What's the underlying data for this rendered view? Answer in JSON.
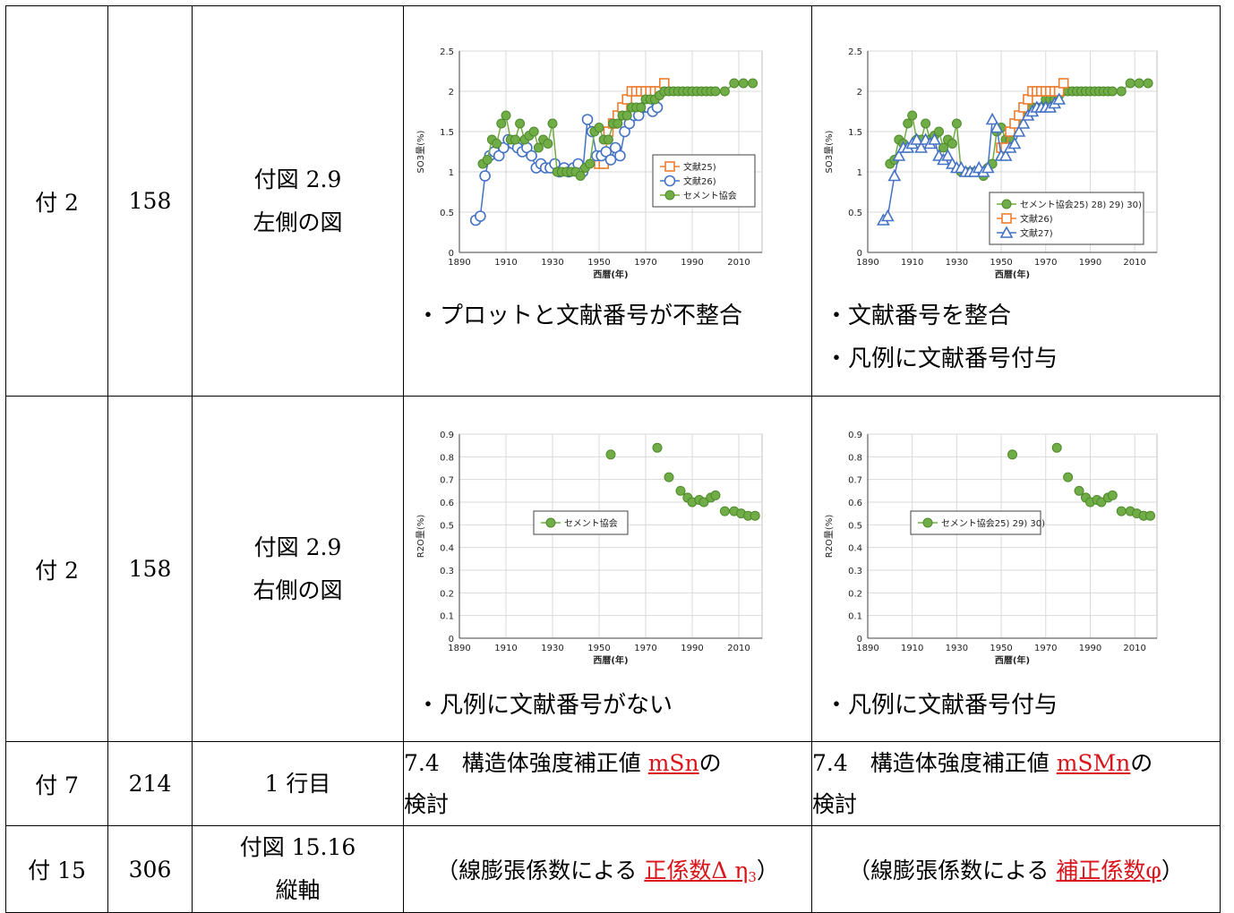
{
  "rows": [
    {
      "page_label": "付 2",
      "page_no": "158",
      "location": [
        "付図 2.9",
        "左側の図"
      ],
      "before_note": [
        "・プロットと文献番号が不整合"
      ],
      "after_note": [
        "・文献番号を整合",
        "・凡例に文献番号付与"
      ]
    },
    {
      "page_label": "付 2",
      "page_no": "158",
      "location": [
        "付図 2.9",
        "右側の図"
      ],
      "before_note": [
        "・凡例に文献番号がない"
      ],
      "after_note": [
        "・凡例に文献番号付与"
      ]
    },
    {
      "page_label": "付 7",
      "page_no": "214",
      "location": [
        "1 行目"
      ],
      "before": {
        "pre": "7.4　構造体強度補正値 ",
        "red": "mSn",
        "post": "の",
        "line2": "検討"
      },
      "after": {
        "pre": "7.4　構造体強度補正値 ",
        "red": "mSMn",
        "post": "の",
        "line2": "検討"
      }
    },
    {
      "page_label": "付 15",
      "page_no": "306",
      "location": [
        "付図 15.16",
        "縦軸"
      ],
      "before": {
        "pre": "（線膨張係数による ",
        "red": "正係数Δ η",
        "red_sub": "3",
        "post": "）"
      },
      "after": {
        "pre": "（線膨張係数による ",
        "red": "補正係数φ",
        "post": "）"
      }
    }
  ],
  "colors": {
    "green": "#70ad47",
    "green_dark": "#4e8a2c",
    "orange": "#ed7d31",
    "blue": "#4472c4",
    "red_text": "#d9141b"
  },
  "chart_data": [
    {
      "type": "scatter",
      "panel": "row1-before",
      "xlabel": "西暦(年)",
      "ylabel": "SO3量(%)",
      "xlim": [
        1890,
        2020
      ],
      "ylim": [
        0,
        2.5
      ],
      "xticks": [
        1890,
        1910,
        1930,
        1950,
        1970,
        1990,
        2010
      ],
      "yticks": [
        0,
        0.5,
        1,
        1.5,
        2,
        2.5
      ],
      "legend_position": "center-right",
      "series": [
        {
          "name": "文献25)",
          "marker": "square-line",
          "color": "#ed7d31",
          "x": [
            1950,
            1952,
            1954,
            1956,
            1958,
            1960,
            1962,
            1964,
            1966,
            1968,
            1970,
            1972,
            1974,
            1976,
            1978
          ],
          "y": [
            1.1,
            1.1,
            1.5,
            1.6,
            1.7,
            1.8,
            1.9,
            2.0,
            2.0,
            2.0,
            2.0,
            2.0,
            2.0,
            2.0,
            2.1
          ]
        },
        {
          "name": "文献26)",
          "marker": "circle-line",
          "color": "#4472c4",
          "x": [
            1897,
            1899,
            1901,
            1903,
            1905,
            1907,
            1909,
            1911,
            1913,
            1915,
            1917,
            1919,
            1921,
            1923,
            1925,
            1927,
            1929,
            1931,
            1933,
            1935,
            1937,
            1939,
            1941,
            1943,
            1945,
            1947,
            1949,
            1951,
            1953,
            1955,
            1957,
            1959,
            1961,
            1963,
            1965,
            1967,
            1969,
            1971,
            1973,
            1975
          ],
          "y": [
            0.4,
            0.45,
            0.95,
            1.2,
            1.25,
            1.2,
            1.3,
            1.4,
            1.35,
            1.3,
            1.25,
            1.3,
            1.2,
            1.05,
            1.1,
            1.05,
            1.05,
            1.1,
            1.0,
            1.05,
            1.0,
            1.05,
            1.1,
            1.0,
            1.65,
            1.5,
            1.2,
            1.2,
            1.25,
            1.15,
            1.3,
            1.2,
            1.5,
            1.6,
            1.7,
            1.7,
            1.8,
            1.8,
            1.75,
            1.8
          ]
        },
        {
          "name": "セメント協会",
          "marker": "circle-line",
          "color": "#70ad47",
          "x": [
            1900,
            1902,
            1904,
            1906,
            1908,
            1910,
            1912,
            1914,
            1916,
            1918,
            1920,
            1922,
            1924,
            1926,
            1928,
            1930,
            1932,
            1934,
            1936,
            1938,
            1940,
            1942,
            1944,
            1946,
            1948,
            1950,
            1952,
            1954,
            1956,
            1958,
            1960,
            1962,
            1964,
            1966,
            1968,
            1970,
            1972,
            1974,
            1976,
            1978,
            1980,
            1982,
            1984,
            1986,
            1988,
            1990,
            1992,
            1994,
            1996,
            1998,
            2000,
            2004,
            2008,
            2012,
            2016
          ],
          "y": [
            1.1,
            1.15,
            1.4,
            1.35,
            1.6,
            1.7,
            1.4,
            1.4,
            1.6,
            1.4,
            1.45,
            1.5,
            1.3,
            1.4,
            1.35,
            1.6,
            1.0,
            1.0,
            1.0,
            1.0,
            1.0,
            0.95,
            1.05,
            1.1,
            1.5,
            1.55,
            1.4,
            1.4,
            1.6,
            1.6,
            1.7,
            1.7,
            1.8,
            1.8,
            1.8,
            1.9,
            1.9,
            1.9,
            1.95,
            2.0,
            2.0,
            2.0,
            2.0,
            2.0,
            2.0,
            2.0,
            2.0,
            2.0,
            2.0,
            2.0,
            2.0,
            2.0,
            2.1,
            2.1,
            2.1
          ]
        }
      ]
    },
    {
      "type": "scatter",
      "panel": "row1-after",
      "xlabel": "西暦(年)",
      "ylabel": "SO3量(%)",
      "xlim": [
        1890,
        2020
      ],
      "ylim": [
        0,
        2.5
      ],
      "xticks": [
        1890,
        1910,
        1930,
        1950,
        1970,
        1990,
        2010
      ],
      "yticks": [
        0,
        0.5,
        1,
        1.5,
        2,
        2.5
      ],
      "legend_position": "bottom-right",
      "series": [
        {
          "name": "セメント協会25) 28) 29) 30)",
          "marker": "circle-line",
          "color": "#70ad47",
          "x": [
            1900,
            1902,
            1904,
            1906,
            1908,
            1910,
            1912,
            1914,
            1916,
            1918,
            1920,
            1922,
            1924,
            1926,
            1928,
            1930,
            1932,
            1934,
            1936,
            1938,
            1940,
            1942,
            1944,
            1946,
            1948,
            1950,
            1952,
            1954,
            1956,
            1958,
            1960,
            1962,
            1964,
            1966,
            1968,
            1970,
            1972,
            1974,
            1976,
            1978,
            1980,
            1982,
            1984,
            1986,
            1988,
            1990,
            1992,
            1994,
            1996,
            1998,
            2000,
            2004,
            2008,
            2012,
            2016
          ],
          "y": [
            1.1,
            1.15,
            1.4,
            1.35,
            1.6,
            1.7,
            1.4,
            1.4,
            1.6,
            1.4,
            1.45,
            1.5,
            1.3,
            1.4,
            1.35,
            1.6,
            1.0,
            1.0,
            1.0,
            1.0,
            1.0,
            0.95,
            1.05,
            1.1,
            1.5,
            1.55,
            1.4,
            1.4,
            1.6,
            1.6,
            1.7,
            1.7,
            1.8,
            1.8,
            1.8,
            1.9,
            1.9,
            1.9,
            1.95,
            2.0,
            2.0,
            2.0,
            2.0,
            2.0,
            2.0,
            2.0,
            2.0,
            2.0,
            2.0,
            2.0,
            2.0,
            2.0,
            2.1,
            2.1,
            2.1
          ]
        },
        {
          "name": "文献26)",
          "marker": "square-line",
          "color": "#ed7d31",
          "x": [
            1950,
            1952,
            1954,
            1956,
            1958,
            1960,
            1962,
            1964,
            1966,
            1968,
            1970,
            1972,
            1974,
            1976,
            1978
          ],
          "y": [
            1.3,
            1.3,
            1.5,
            1.6,
            1.7,
            1.8,
            1.9,
            2.0,
            2.0,
            2.0,
            2.0,
            2.0,
            2.0,
            2.0,
            2.1
          ]
        },
        {
          "name": "文献27)",
          "marker": "triangle-line",
          "color": "#4472c4",
          "x": [
            1897,
            1899,
            1902,
            1904,
            1906,
            1908,
            1910,
            1912,
            1914,
            1916,
            1918,
            1920,
            1922,
            1924,
            1926,
            1928,
            1930,
            1932,
            1934,
            1936,
            1938,
            1940,
            1942,
            1944,
            1946,
            1948,
            1950,
            1952,
            1954,
            1956,
            1958,
            1960,
            1962,
            1964,
            1966,
            1968,
            1970,
            1972,
            1974,
            1976
          ],
          "y": [
            0.4,
            0.45,
            0.95,
            1.2,
            1.3,
            1.3,
            1.35,
            1.4,
            1.3,
            1.4,
            1.35,
            1.4,
            1.2,
            1.15,
            1.2,
            1.1,
            1.05,
            1.05,
            1.0,
            1.0,
            1.0,
            1.05,
            1.0,
            1.05,
            1.65,
            1.55,
            1.2,
            1.2,
            1.3,
            1.35,
            1.5,
            1.6,
            1.7,
            1.75,
            1.8,
            1.8,
            1.8,
            1.8,
            1.85,
            1.9
          ]
        }
      ]
    },
    {
      "type": "scatter",
      "panel": "row2-before",
      "xlabel": "西暦(年)",
      "ylabel": "R2O量(%)",
      "xlim": [
        1890,
        2020
      ],
      "ylim": [
        0,
        0.9
      ],
      "xticks": [
        1890,
        1910,
        1930,
        1950,
        1970,
        1990,
        2010
      ],
      "yticks": [
        0,
        0.1,
        0.2,
        0.3,
        0.4,
        0.5,
        0.6,
        0.7,
        0.8,
        0.9
      ],
      "legend_position": "center-left",
      "series": [
        {
          "name": "セメント協会",
          "marker": "circle",
          "color": "#70ad47",
          "x": [
            1955,
            1975,
            1980,
            1985,
            1988,
            1990,
            1993,
            1995,
            1998,
            2000,
            2004,
            2008,
            2011,
            2014,
            2017
          ],
          "y": [
            0.81,
            0.84,
            0.71,
            0.65,
            0.62,
            0.6,
            0.61,
            0.6,
            0.62,
            0.63,
            0.56,
            0.56,
            0.55,
            0.54,
            0.54
          ]
        }
      ]
    },
    {
      "type": "scatter",
      "panel": "row2-after",
      "xlabel": "西暦(年)",
      "ylabel": "R2O量(%)",
      "xlim": [
        1890,
        2020
      ],
      "ylim": [
        0,
        0.9
      ],
      "xticks": [
        1890,
        1910,
        1930,
        1950,
        1970,
        1990,
        2010
      ],
      "yticks": [
        0,
        0.1,
        0.2,
        0.3,
        0.4,
        0.5,
        0.6,
        0.7,
        0.8,
        0.9
      ],
      "legend_position": "center-left",
      "series": [
        {
          "name": "セメント協会25) 29) 30)",
          "marker": "circle",
          "color": "#70ad47",
          "x": [
            1955,
            1975,
            1980,
            1985,
            1988,
            1990,
            1993,
            1995,
            1998,
            2000,
            2004,
            2008,
            2011,
            2014,
            2017
          ],
          "y": [
            0.81,
            0.84,
            0.71,
            0.65,
            0.62,
            0.6,
            0.61,
            0.6,
            0.62,
            0.63,
            0.56,
            0.56,
            0.55,
            0.54,
            0.54
          ]
        }
      ]
    }
  ]
}
